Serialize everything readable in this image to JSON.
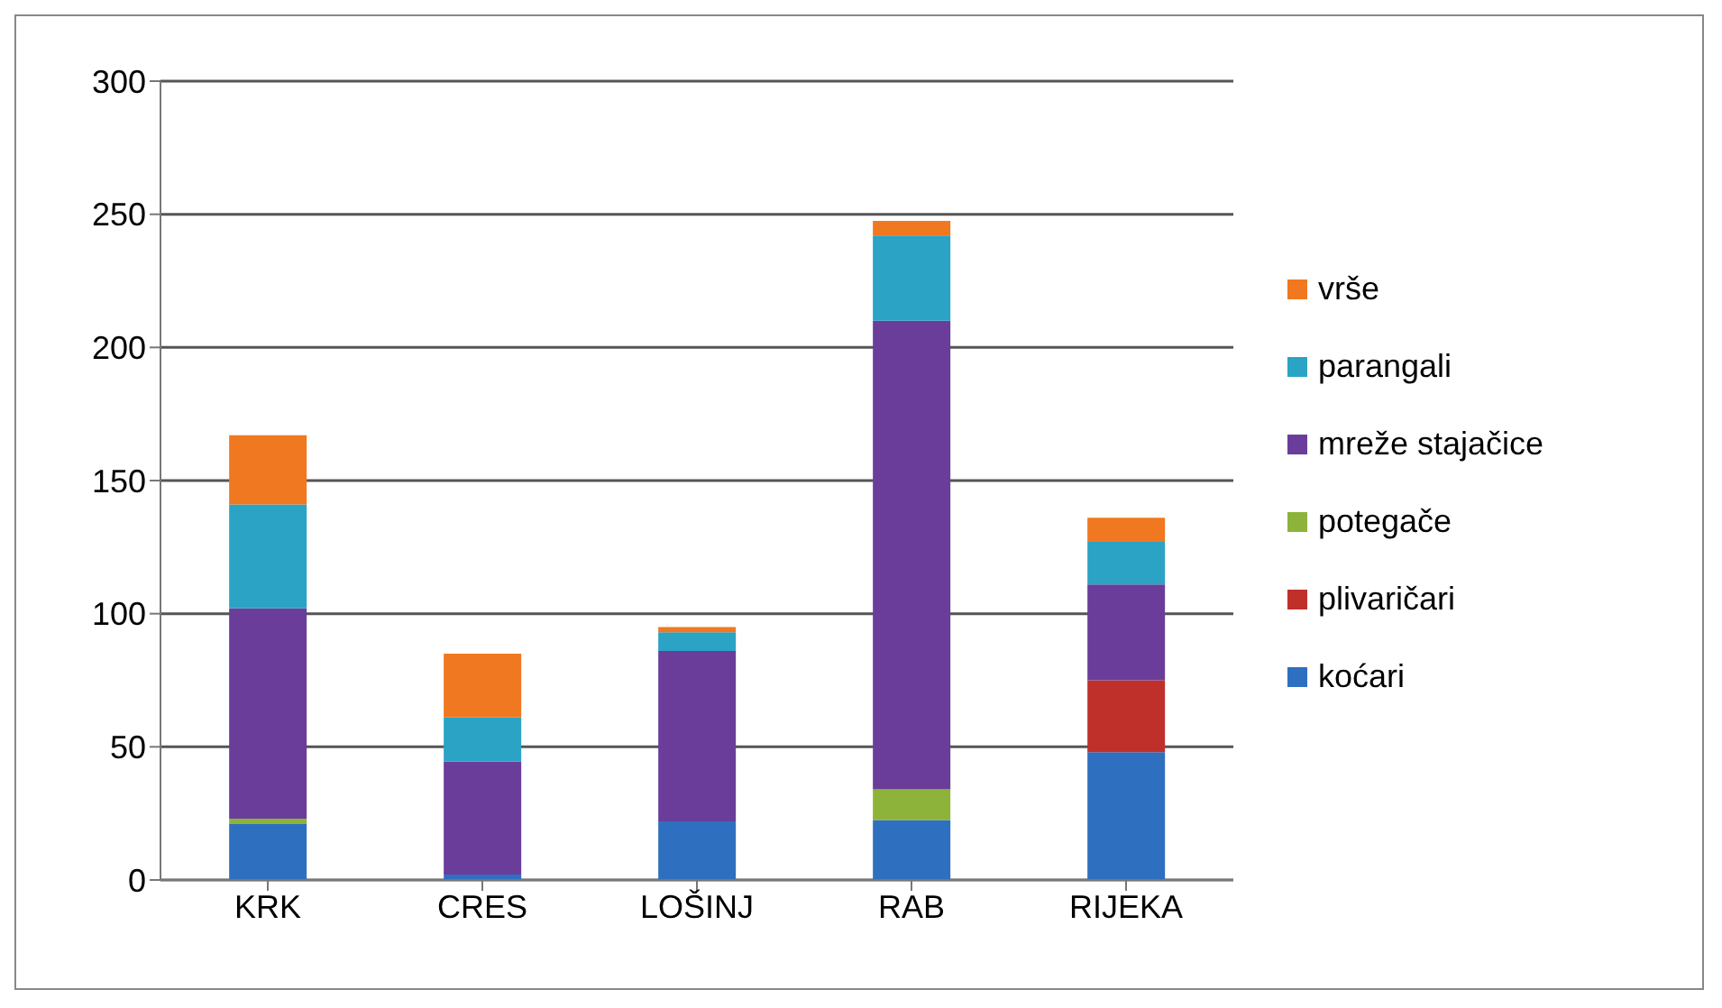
{
  "chart_data": {
    "type": "bar",
    "stacked": true,
    "categories": [
      "KRK",
      "CRES",
      "LOŠINJ",
      "RAB",
      "RIJEKA"
    ],
    "series": [
      {
        "name": "koćari",
        "color": "#2f6fc0",
        "values": [
          21,
          2,
          22,
          22.5,
          48
        ]
      },
      {
        "name": "plivaričari",
        "color": "#c0302a",
        "values": [
          0,
          0,
          0,
          0,
          27
        ]
      },
      {
        "name": "potegače",
        "color": "#8db33a",
        "values": [
          2,
          0,
          0,
          11.5,
          0
        ]
      },
      {
        "name": "mreže stajačice",
        "color": "#6a3d9a",
        "values": [
          79,
          42.5,
          64,
          176,
          36
        ]
      },
      {
        "name": "parangali",
        "color": "#2aa3c4",
        "values": [
          39,
          16.5,
          7,
          32,
          16
        ]
      },
      {
        "name": "vrše",
        "color": "#f07820",
        "values": [
          26,
          24,
          2,
          5.5,
          9
        ]
      }
    ],
    "ylim": [
      0,
      300
    ],
    "yticks": [
      0,
      50,
      100,
      150,
      200,
      250,
      300
    ],
    "grid": "y",
    "legend": "right"
  }
}
